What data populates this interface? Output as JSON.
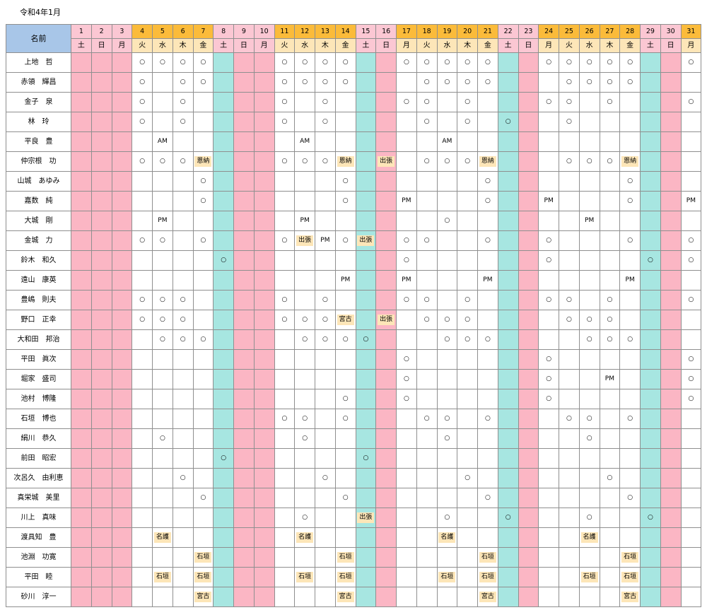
{
  "document": {
    "title": "令和4年1月"
  },
  "header": {
    "name_label": "名前"
  },
  "colors": {
    "weekday_header": "#fbbb3a",
    "weekday_header_label": "#fde6b8",
    "holiday_header": "#fbc7d3",
    "saturday_col": "#a7e6e1",
    "holiday_col": "#fbb6c4",
    "tag_bg": "#fde6b8",
    "name_header": "#a8c6e8"
  },
  "days": [
    {
      "d": "1",
      "w": "土",
      "t": "h"
    },
    {
      "d": "2",
      "w": "日",
      "t": "h"
    },
    {
      "d": "3",
      "w": "月",
      "t": "h"
    },
    {
      "d": "4",
      "w": "火",
      "t": "w"
    },
    {
      "d": "5",
      "w": "水",
      "t": "w"
    },
    {
      "d": "6",
      "w": "木",
      "t": "w"
    },
    {
      "d": "7",
      "w": "金",
      "t": "w"
    },
    {
      "d": "8",
      "w": "土",
      "t": "s"
    },
    {
      "d": "9",
      "w": "日",
      "t": "h"
    },
    {
      "d": "10",
      "w": "月",
      "t": "h"
    },
    {
      "d": "11",
      "w": "火",
      "t": "w"
    },
    {
      "d": "12",
      "w": "水",
      "t": "w"
    },
    {
      "d": "13",
      "w": "木",
      "t": "w"
    },
    {
      "d": "14",
      "w": "金",
      "t": "w"
    },
    {
      "d": "15",
      "w": "土",
      "t": "s"
    },
    {
      "d": "16",
      "w": "日",
      "t": "h"
    },
    {
      "d": "17",
      "w": "月",
      "t": "w"
    },
    {
      "d": "18",
      "w": "火",
      "t": "w"
    },
    {
      "d": "19",
      "w": "水",
      "t": "w"
    },
    {
      "d": "20",
      "w": "木",
      "t": "w"
    },
    {
      "d": "21",
      "w": "金",
      "t": "w"
    },
    {
      "d": "22",
      "w": "土",
      "t": "s"
    },
    {
      "d": "23",
      "w": "日",
      "t": "h"
    },
    {
      "d": "24",
      "w": "月",
      "t": "w"
    },
    {
      "d": "25",
      "w": "火",
      "t": "w"
    },
    {
      "d": "26",
      "w": "水",
      "t": "w"
    },
    {
      "d": "27",
      "w": "木",
      "t": "w"
    },
    {
      "d": "28",
      "w": "金",
      "t": "w"
    },
    {
      "d": "29",
      "w": "土",
      "t": "s"
    },
    {
      "d": "30",
      "w": "日",
      "t": "h"
    },
    {
      "d": "31",
      "w": "月",
      "t": "w"
    }
  ],
  "rows": [
    {
      "name": "上地　哲",
      "cells": {
        "4": "○",
        "5": "○",
        "6": "○",
        "7": "○",
        "11": "○",
        "12": "○",
        "13": "○",
        "14": "○",
        "17": "○",
        "18": "○",
        "19": "○",
        "20": "○",
        "21": "○",
        "24": "○",
        "25": "○",
        "26": "○",
        "27": "○",
        "28": "○",
        "31": "○"
      }
    },
    {
      "name": "赤領　輝昌",
      "cells": {
        "4": "○",
        "6": "○",
        "7": "○",
        "11": "○",
        "12": "○",
        "13": "○",
        "14": "○",
        "18": "○",
        "19": "○",
        "20": "○",
        "21": "○",
        "25": "○",
        "26": "○",
        "27": "○",
        "28": "○"
      }
    },
    {
      "name": "金子　泉",
      "cells": {
        "4": "○",
        "6": "○",
        "11": "○",
        "13": "○",
        "17": "○",
        "18": "○",
        "20": "○",
        "24": "○",
        "25": "○",
        "27": "○",
        "31": "○"
      }
    },
    {
      "name": "林　玲",
      "cells": {
        "4": "○",
        "6": "○",
        "11": "○",
        "13": "○",
        "18": "○",
        "20": "○",
        "22": "○",
        "25": "○"
      }
    },
    {
      "name": "平良　豊",
      "cells": {
        "5": "AM",
        "12": "AM",
        "19": "AM"
      }
    },
    {
      "name": "仲宗根　功",
      "cells": {
        "4": "○",
        "5": "○",
        "6": "○",
        "7": "恩納",
        "11": "○",
        "12": "○",
        "13": "○",
        "14": "恩納",
        "16": "出張",
        "18": "○",
        "19": "○",
        "20": "○",
        "21": "恩納",
        "25": "○",
        "26": "○",
        "27": "○",
        "28": "恩納"
      }
    },
    {
      "name": "山城　あゆみ",
      "cells": {
        "7": "○",
        "14": "○",
        "21": "○",
        "28": "○"
      }
    },
    {
      "name": "嘉数　純",
      "cells": {
        "7": "○",
        "14": "○",
        "17": "PM",
        "21": "○",
        "24": "PM",
        "28": "○",
        "31": "PM"
      }
    },
    {
      "name": "大城　剛",
      "cells": {
        "5": "PM",
        "12": "PM",
        "19": "○",
        "26": "PM"
      }
    },
    {
      "name": "金城　力",
      "cells": {
        "4": "○",
        "5": "○",
        "7": "○",
        "11": "○",
        "12": "出張",
        "13": "PM",
        "14": "○",
        "15": "出張",
        "17": "○",
        "18": "○",
        "21": "○",
        "24": "○",
        "28": "○",
        "31": "○"
      }
    },
    {
      "name": "鈴木　和久",
      "cells": {
        "8": "○",
        "17": "○",
        "24": "○",
        "29": "○",
        "31": "○"
      }
    },
    {
      "name": "遠山　康英",
      "cells": {
        "14": "PM",
        "17": "PM",
        "21": "PM",
        "28": "PM"
      }
    },
    {
      "name": "豊嶋　則夫",
      "cells": {
        "4": "○",
        "5": "○",
        "6": "○",
        "11": "○",
        "13": "○",
        "17": "○",
        "18": "○",
        "20": "○",
        "24": "○",
        "25": "○",
        "27": "○",
        "31": "○"
      }
    },
    {
      "name": "野口　正幸",
      "cells": {
        "4": "○",
        "5": "○",
        "6": "○",
        "11": "○",
        "12": "○",
        "13": "○",
        "14": "宮古",
        "16": "出張",
        "18": "○",
        "19": "○",
        "20": "○",
        "25": "○",
        "26": "○",
        "27": "○"
      }
    },
    {
      "name": "大和田　邦治",
      "cells": {
        "5": "○",
        "6": "○",
        "7": "○",
        "12": "○",
        "13": "○",
        "14": "○",
        "15": "○",
        "19": "○",
        "20": "○",
        "21": "○",
        "26": "○",
        "27": "○",
        "28": "○"
      }
    },
    {
      "name": "平田　眞次",
      "cells": {
        "17": "○",
        "24": "○",
        "31": "○"
      }
    },
    {
      "name": "堀家　盛司",
      "cells": {
        "17": "○",
        "24": "○",
        "27": "PM",
        "31": "○"
      }
    },
    {
      "name": "池村　博隆",
      "cells": {
        "14": "○",
        "17": "○",
        "24": "○",
        "31": "○"
      }
    },
    {
      "name": "石垣　博也",
      "cells": {
        "11": "○",
        "12": "○",
        "14": "○",
        "18": "○",
        "19": "○",
        "21": "○",
        "25": "○",
        "26": "○",
        "28": "○"
      }
    },
    {
      "name": "絹川　恭久",
      "cells": {
        "5": "○",
        "12": "○",
        "19": "○",
        "26": "○"
      }
    },
    {
      "name": "前田　昭宏",
      "cells": {
        "8": "○",
        "15": "○"
      }
    },
    {
      "name": "次呂久　由利恵",
      "cells": {
        "6": "○",
        "13": "○",
        "20": "○",
        "27": "○"
      }
    },
    {
      "name": "真栄城　美里",
      "cells": {
        "7": "○",
        "14": "○",
        "21": "○",
        "28": "○"
      }
    },
    {
      "name": "川上　真味",
      "cells": {
        "12": "○",
        "15": "出張",
        "19": "○",
        "22": "○",
        "26": "○",
        "29": "○"
      }
    },
    {
      "name": "渡具知　豊",
      "cells": {
        "5": "名護",
        "12": "名護",
        "19": "名護",
        "26": "名護"
      }
    },
    {
      "name": "池淵　功寛",
      "cells": {
        "7": "石垣",
        "14": "石垣",
        "21": "石垣",
        "28": "石垣"
      }
    },
    {
      "name": "平田　睦",
      "cells": {
        "5": "石垣",
        "7": "石垣",
        "12": "石垣",
        "14": "石垣",
        "19": "石垣",
        "21": "石垣",
        "26": "石垣",
        "28": "石垣"
      }
    },
    {
      "name": "砂川　淳一",
      "cells": {
        "7": "宮古",
        "14": "宮古",
        "21": "宮古",
        "28": "宮古"
      }
    }
  ]
}
